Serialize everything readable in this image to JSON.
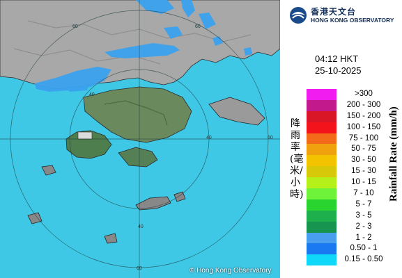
{
  "header": {
    "org_name_cn": "香港天文台",
    "org_name_en": "HONG KONG OBSERVATORY"
  },
  "timestamp": {
    "time": "04:12 HKT",
    "date": "25-10-2025"
  },
  "map": {
    "copyright": "© Hong Kong Observatory",
    "range_ring_labels": [
      "60",
      "60",
      "40",
      "40",
      "40",
      "60",
      "60"
    ]
  },
  "legend": {
    "title_cn": "降雨率(毫米/小時)",
    "title_en": "Rainfall Rate (mm/h)",
    "items": [
      {
        "label": ">300",
        "color": "#f01cf0"
      },
      {
        "label": "200 - 300",
        "color": "#c21a8c"
      },
      {
        "label": "150 - 200",
        "color": "#d81628"
      },
      {
        "label": "100 - 150",
        "color": "#f2141a"
      },
      {
        "label": "75 - 100",
        "color": "#f26a1a"
      },
      {
        "label": "50 - 75",
        "color": "#f0a20e"
      },
      {
        "label": "30 - 50",
        "color": "#f3c300"
      },
      {
        "label": "15 - 30",
        "color": "#d7c80a"
      },
      {
        "label": "10 - 15",
        "color": "#b6f01a"
      },
      {
        "label": "7 - 10",
        "color": "#6ef23a"
      },
      {
        "label": "5 - 7",
        "color": "#2ad430"
      },
      {
        "label": "3 - 5",
        "color": "#1db04c"
      },
      {
        "label": "2 - 3",
        "color": "#169450"
      },
      {
        "label": "1 - 2",
        "color": "#4a9ef0"
      },
      {
        "label": "0.50 - 1",
        "color": "#1a78f0"
      },
      {
        "label": "0.15 - 0.50",
        "color": "#10d8f8"
      }
    ]
  }
}
